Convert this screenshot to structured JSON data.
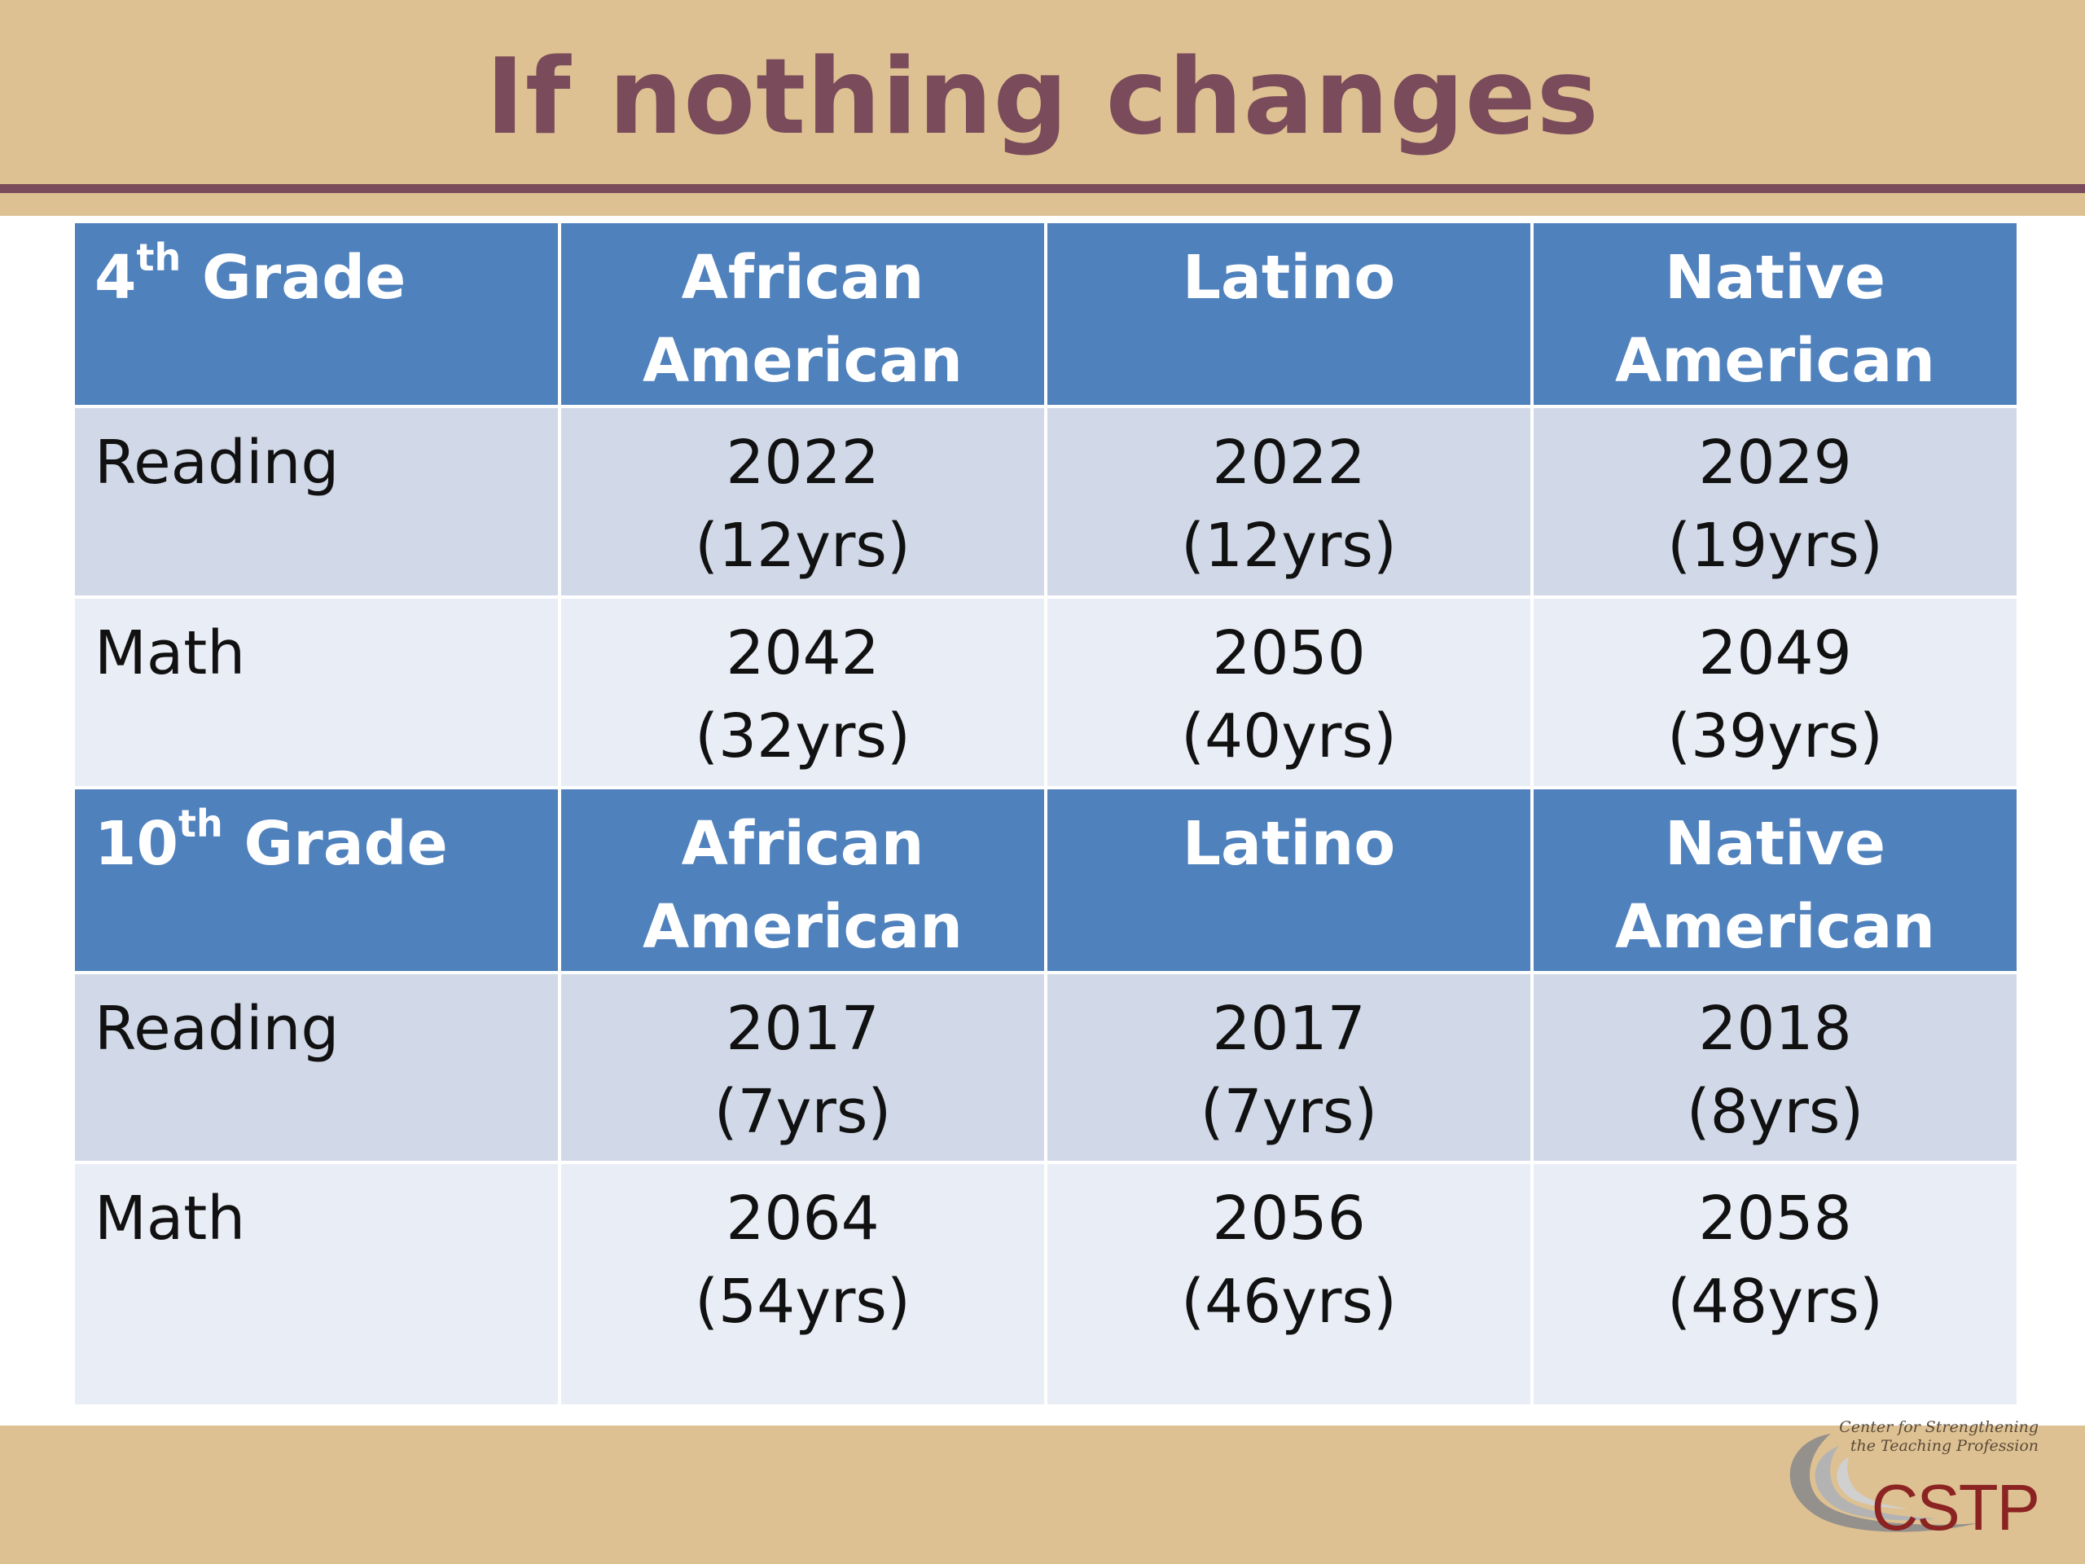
{
  "title": "If nothing changes",
  "colors": {
    "background": "#dec192",
    "title": "#7a4b5a",
    "header_blue": "#4f81bd",
    "row_band_dark": "#d1d9e8",
    "row_band_light": "#e9edf5"
  },
  "table": {
    "sections": [
      {
        "grade_number": "4",
        "grade_suffix": "th",
        "grade_word": "Grade",
        "columns": [
          {
            "line1": "African",
            "line2": "American"
          },
          {
            "line1": "Latino",
            "line2": ""
          },
          {
            "line1": "Native",
            "line2": "American"
          }
        ],
        "rows": [
          {
            "subject": "Reading",
            "cells": [
              {
                "year": "2022",
                "span": "(12yrs)"
              },
              {
                "year": "2022",
                "span": "(12yrs)"
              },
              {
                "year": "2029",
                "span": "(19yrs)"
              }
            ]
          },
          {
            "subject": "Math",
            "cells": [
              {
                "year": "2042",
                "span": "(32yrs)"
              },
              {
                "year": "2050",
                "span": "(40yrs)"
              },
              {
                "year": "2049",
                "span": "(39yrs)"
              }
            ]
          }
        ]
      },
      {
        "grade_number": "10",
        "grade_suffix": "th",
        "grade_word": "Grade",
        "columns": [
          {
            "line1": "African",
            "line2": "American"
          },
          {
            "line1": "Latino",
            "line2": ""
          },
          {
            "line1": "Native",
            "line2": "American"
          }
        ],
        "rows": [
          {
            "subject": "Reading",
            "cells": [
              {
                "year": "2017",
                "span": "(7yrs)"
              },
              {
                "year": "2017",
                "span": "(7yrs)"
              },
              {
                "year": "2018",
                "span": "(8yrs)"
              }
            ]
          },
          {
            "subject": "Math",
            "cells": [
              {
                "year": "2064",
                "span": "(54yrs)"
              },
              {
                "year": "2056",
                "span": "(46yrs)"
              },
              {
                "year": "2058",
                "span": "(48yrs)"
              }
            ]
          }
        ]
      }
    ]
  },
  "logo": {
    "line1": "Center for Strengthening",
    "line2": "the Teaching Profession",
    "abbrev": "CSTP"
  }
}
